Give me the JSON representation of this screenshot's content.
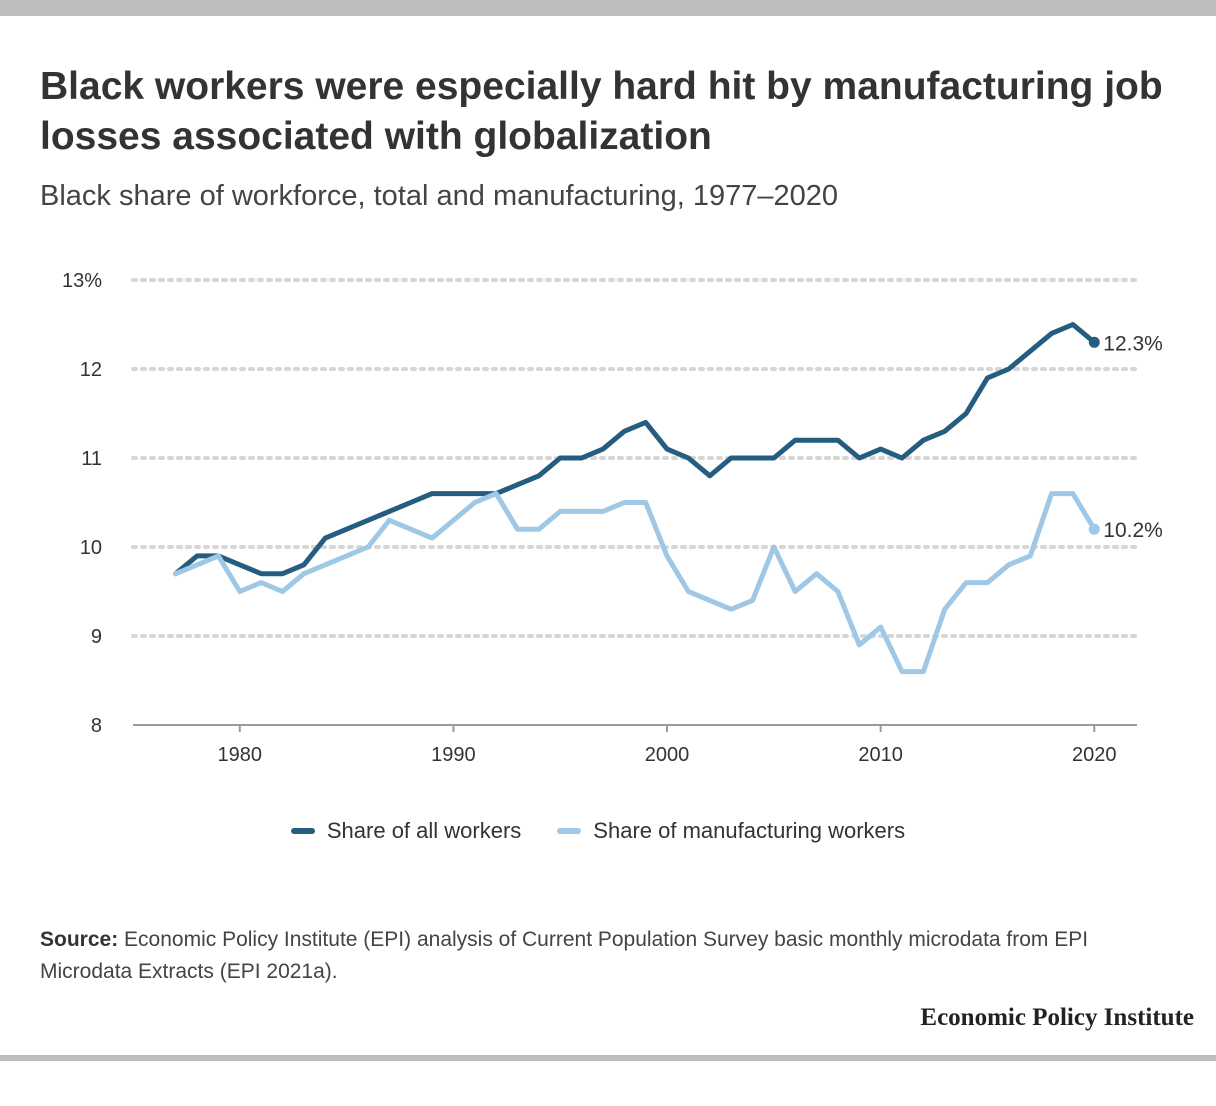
{
  "header": {
    "title": "Black workers were especially hard hit by manufacturing job losses associated with globalization",
    "subtitle": "Black share of workforce, total and manufacturing, 1977–2020"
  },
  "footer": {
    "source_label": "Source:",
    "source_text": "Economic Policy Institute (EPI) analysis of Current Population Survey basic monthly microdata from EPI Microdata Extracts (EPI 2021a).",
    "brand": "Economic Policy Institute"
  },
  "colors": {
    "all_workers": "#245d7f",
    "manufacturing": "#9fc7e6",
    "grid": "#d6d6d6",
    "axis": "#9a9a9a"
  },
  "chart_data": {
    "type": "line",
    "title": "Black workers were especially hard hit by manufacturing job losses associated with globalization",
    "subtitle": "Black share of workforce, total and manufacturing, 1977–2020",
    "xlim": [
      1975,
      2022
    ],
    "ylim": [
      8,
      13
    ],
    "x_ticks": [
      1980,
      1990,
      2000,
      2010,
      2020
    ],
    "x_tick_labels": [
      "1980",
      "1990",
      "2000",
      "2010",
      "2020"
    ],
    "y_ticks": [
      8,
      9,
      10,
      11,
      12,
      13
    ],
    "y_tick_labels": [
      "8",
      "9",
      "10",
      "11",
      "12",
      "13%"
    ],
    "grid": "horizontal dotted",
    "legend_position": "bottom",
    "x": [
      1977,
      1978,
      1979,
      1980,
      1981,
      1982,
      1983,
      1984,
      1985,
      1986,
      1987,
      1988,
      1989,
      1990,
      1991,
      1992,
      1993,
      1994,
      1995,
      1996,
      1997,
      1998,
      1999,
      2000,
      2001,
      2002,
      2003,
      2004,
      2005,
      2006,
      2007,
      2008,
      2009,
      2010,
      2011,
      2012,
      2013,
      2014,
      2015,
      2016,
      2017,
      2018,
      2019,
      2020
    ],
    "series": [
      {
        "name": "Share of all workers",
        "color": "#245d7f",
        "end_label": "12.3%",
        "values": [
          9.7,
          9.9,
          9.9,
          9.8,
          9.7,
          9.7,
          9.8,
          10.1,
          10.2,
          10.3,
          10.4,
          10.5,
          10.6,
          10.6,
          10.6,
          10.6,
          10.7,
          10.8,
          11.0,
          11.0,
          11.1,
          11.3,
          11.4,
          11.1,
          11.0,
          10.8,
          11.0,
          11.0,
          11.0,
          11.2,
          11.2,
          11.2,
          11.0,
          11.1,
          11.0,
          11.2,
          11.3,
          11.5,
          11.9,
          12.0,
          12.2,
          12.4,
          12.5,
          12.3
        ]
      },
      {
        "name": "Share of manufacturing workers",
        "color": "#9fc7e6",
        "end_label": "10.2%",
        "values": [
          9.7,
          9.8,
          9.9,
          9.5,
          9.6,
          9.5,
          9.7,
          9.8,
          9.9,
          10.0,
          10.3,
          10.2,
          10.1,
          10.3,
          10.5,
          10.6,
          10.2,
          10.2,
          10.4,
          10.4,
          10.4,
          10.5,
          10.5,
          9.9,
          9.5,
          9.4,
          9.3,
          9.4,
          10.0,
          9.5,
          9.7,
          9.5,
          8.9,
          9.1,
          8.6,
          8.6,
          9.3,
          9.6,
          9.6,
          9.8,
          9.9,
          10.6,
          10.6,
          10.2
        ]
      }
    ]
  }
}
